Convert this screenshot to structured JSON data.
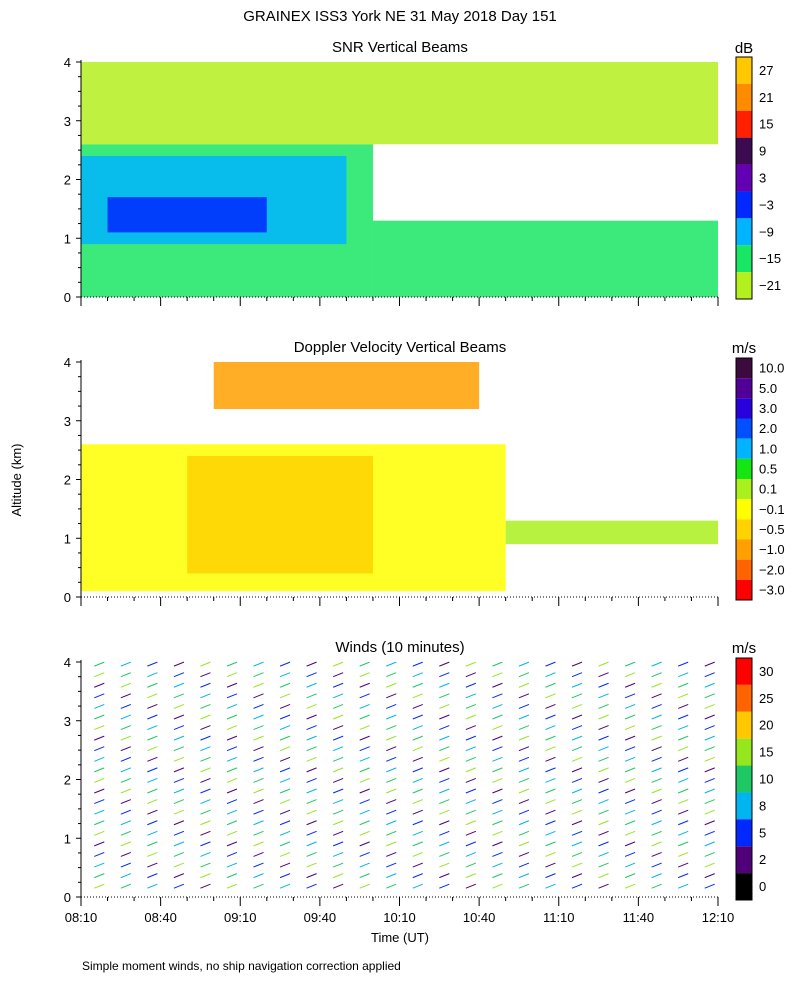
{
  "title": "GRAINEX ISS3 York NE  31 May 2018 Day 151",
  "ylabel": "Altitude (km)",
  "xlabel": "Time (UT)",
  "footnote": "Simple moment winds, no ship navigation correction applied",
  "time_ticks": [
    "08:10",
    "08:40",
    "09:10",
    "09:40",
    "10:10",
    "10:40",
    "11:10",
    "11:40",
    "12:10"
  ],
  "altitude_ticks": [
    "0",
    "1",
    "2",
    "3",
    "4"
  ],
  "chart_data": [
    {
      "type": "heatmap",
      "title": "SNR Vertical Beams",
      "units": "dB",
      "x_range": [
        "08:10",
        "12:10"
      ],
      "ylim": [
        0,
        4
      ],
      "colorbar": {
        "labels": [
          "27",
          "21",
          "15",
          "9",
          "3",
          "−3",
          "−9",
          "−15",
          "−21"
        ],
        "colors": [
          "#ffc800",
          "#ff8c00",
          "#ff2000",
          "#3c0a50",
          "#6400b4",
          "#0028ff",
          "#00b4ff",
          "#19e664",
          "#b4f01e"
        ]
      },
      "regions": [
        {
          "x0": "08:10",
          "x1": "10:00",
          "y0": 0.0,
          "y1": 2.6,
          "level": "-15"
        },
        {
          "x0": "10:00",
          "x1": "12:10",
          "y0": 0.0,
          "y1": 1.3,
          "level": "-15"
        },
        {
          "x0": "08:10",
          "x1": "09:50",
          "y0": 0.9,
          "y1": 2.4,
          "level": "-9"
        },
        {
          "x0": "08:20",
          "x1": "09:20",
          "y0": 1.1,
          "y1": 1.7,
          "level": "-3"
        },
        {
          "x0": "08:10",
          "x1": "12:10",
          "y0": 2.6,
          "y1": 4.0,
          "level": "-21"
        }
      ]
    },
    {
      "type": "heatmap",
      "title": "Doppler Velocity Vertical Beams",
      "units": "m/s",
      "x_range": [
        "08:10",
        "12:10"
      ],
      "ylim": [
        0,
        4
      ],
      "colorbar": {
        "labels": [
          "10.0",
          "5.0",
          "3.0",
          "2.0",
          "1.0",
          "0.5",
          "0.1",
          "−0.1",
          "−0.5",
          "−1.0",
          "−2.0",
          "−3.0"
        ],
        "colors": [
          "#3c0a3c",
          "#500096",
          "#2800dc",
          "#0050ff",
          "#00b4ff",
          "#14e614",
          "#aaf01e",
          "#ffff00",
          "#ffd200",
          "#ffa000",
          "#ff6400",
          "#ff0000"
        ]
      },
      "regions": [
        {
          "x0": "08:10",
          "x1": "10:50",
          "y0": 0.1,
          "y1": 2.6,
          "level": "-0.1"
        },
        {
          "x0": "08:50",
          "x1": "10:00",
          "y0": 0.4,
          "y1": 2.4,
          "level": "-0.5"
        },
        {
          "x0": "10:50",
          "x1": "12:10",
          "y0": 0.9,
          "y1": 1.3,
          "level": "0.1"
        },
        {
          "x0": "09:00",
          "x1": "10:40",
          "y0": 3.2,
          "y1": 4.0,
          "level": "-1.0"
        }
      ]
    },
    {
      "type": "barbs",
      "title": "Winds (10 minutes)",
      "units": "m/s",
      "x_range": [
        "08:10",
        "12:10"
      ],
      "ylim": [
        0,
        4
      ],
      "colorbar": {
        "labels": [
          "30",
          "25",
          "20",
          "15",
          "10",
          "8",
          "5",
          "2",
          "0"
        ],
        "colors": [
          "#ff0000",
          "#ff6400",
          "#ffc800",
          "#96e61e",
          "#1ec864",
          "#00b4f0",
          "#0028ff",
          "#500078",
          "#000000"
        ]
      },
      "columns": [
        "08:15",
        "08:25",
        "08:35",
        "08:45",
        "08:55",
        "09:05",
        "09:15",
        "09:25",
        "09:35",
        "09:45",
        "09:55",
        "10:05",
        "10:15",
        "10:25",
        "10:35",
        "10:45",
        "10:55",
        "11:05",
        "11:15",
        "11:25",
        "11:35",
        "11:45",
        "11:55",
        "12:05"
      ]
    }
  ]
}
